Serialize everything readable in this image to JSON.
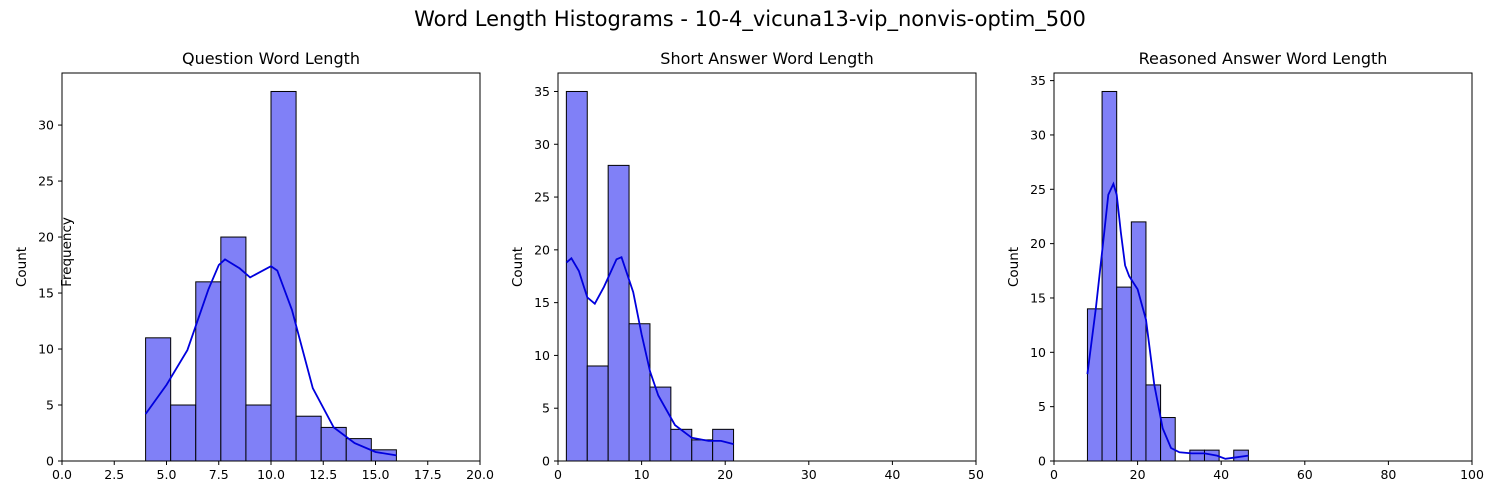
{
  "figure": {
    "title": "Word Length Histograms - 10-4_vicuna13-vip_nonvis-optim_500",
    "extra_label": "Frequency"
  },
  "colors": {
    "bar_fill": "#8080f7",
    "kde_line": "#0000dd",
    "edge": "#000000"
  },
  "chart_data": [
    {
      "type": "bar",
      "title": "Question Word Length",
      "xlabel": "",
      "ylabel": "Count",
      "xlim": [
        0,
        20
      ],
      "ylim": [
        0,
        34.65
      ],
      "xticks": [
        0,
        2.5,
        5,
        7.5,
        10,
        12.5,
        15,
        17.5,
        20
      ],
      "xtick_labels": [
        "0.0",
        "2.5",
        "5.0",
        "7.5",
        "10.0",
        "12.5",
        "15.0",
        "17.5",
        "20.0"
      ],
      "yticks": [
        0,
        5,
        10,
        15,
        20,
        25,
        30
      ],
      "bins": [
        {
          "x0": 4,
          "x1": 5.2,
          "count": 11
        },
        {
          "x0": 5.2,
          "x1": 6.4,
          "count": 5
        },
        {
          "x0": 6.4,
          "x1": 7.6,
          "count": 16
        },
        {
          "x0": 7.6,
          "x1": 8.8,
          "count": 20
        },
        {
          "x0": 8.8,
          "x1": 10,
          "count": 5
        },
        {
          "x0": 10,
          "x1": 11.2,
          "count": 33
        },
        {
          "x0": 11.2,
          "x1": 12.4,
          "count": 4
        },
        {
          "x0": 12.4,
          "x1": 13.6,
          "count": 3
        },
        {
          "x0": 13.6,
          "x1": 14.8,
          "count": 2
        },
        {
          "x0": 14.8,
          "x1": 16,
          "count": 1
        }
      ],
      "kde": [
        [
          4,
          4.2
        ],
        [
          5,
          6.8
        ],
        [
          6,
          9.9
        ],
        [
          7,
          15.3
        ],
        [
          7.5,
          17.5
        ],
        [
          7.8,
          18
        ],
        [
          8.5,
          17.2
        ],
        [
          9,
          16.4
        ],
        [
          9.5,
          16.9
        ],
        [
          10,
          17.4
        ],
        [
          10.3,
          17.0
        ],
        [
          11,
          13.5
        ],
        [
          12,
          6.5
        ],
        [
          13,
          3.0
        ],
        [
          14,
          1.6
        ],
        [
          15,
          0.8
        ],
        [
          16,
          0.5
        ]
      ]
    },
    {
      "type": "bar",
      "title": "Short Answer Word Length",
      "xlabel": "",
      "ylabel": "Count",
      "xlim": [
        0,
        50
      ],
      "ylim": [
        0,
        36.75
      ],
      "xticks": [
        0,
        10,
        20,
        30,
        40,
        50
      ],
      "xtick_labels": [
        "0",
        "10",
        "20",
        "30",
        "40",
        "50"
      ],
      "yticks": [
        0,
        5,
        10,
        15,
        20,
        25,
        30,
        35
      ],
      "bins": [
        {
          "x0": 1,
          "x1": 3.5,
          "count": 35
        },
        {
          "x0": 3.5,
          "x1": 6,
          "count": 9
        },
        {
          "x0": 6,
          "x1": 8.5,
          "count": 28
        },
        {
          "x0": 8.5,
          "x1": 11,
          "count": 13
        },
        {
          "x0": 11,
          "x1": 13.5,
          "count": 7
        },
        {
          "x0": 13.5,
          "x1": 16,
          "count": 3
        },
        {
          "x0": 16,
          "x1": 18.5,
          "count": 2
        },
        {
          "x0": 18.5,
          "x1": 21,
          "count": 3
        }
      ],
      "kde": [
        [
          1,
          18.8
        ],
        [
          1.6,
          19.2
        ],
        [
          2.5,
          18
        ],
        [
          3.5,
          15.5
        ],
        [
          4.4,
          14.9
        ],
        [
          5.5,
          16.5
        ],
        [
          7,
          19.1
        ],
        [
          7.6,
          19.3
        ],
        [
          9,
          16
        ],
        [
          10,
          12
        ],
        [
          11,
          8.5
        ],
        [
          12,
          6.2
        ],
        [
          14,
          3.4
        ],
        [
          16,
          2.2
        ],
        [
          18,
          1.9
        ],
        [
          19.5,
          1.9
        ],
        [
          21,
          1.6
        ]
      ]
    },
    {
      "type": "bar",
      "title": "Reasoned Answer Word Length",
      "xlabel": "",
      "ylabel": "Count",
      "xlim": [
        0,
        100
      ],
      "ylim": [
        0,
        35.7
      ],
      "xticks": [
        0,
        20,
        40,
        60,
        80,
        100
      ],
      "xtick_labels": [
        "0",
        "20",
        "40",
        "60",
        "80",
        "100"
      ],
      "yticks": [
        0,
        5,
        10,
        15,
        20,
        25,
        30,
        35
      ],
      "bins": [
        {
          "x0": 8,
          "x1": 11.5,
          "count": 14
        },
        {
          "x0": 11.5,
          "x1": 15,
          "count": 34
        },
        {
          "x0": 15,
          "x1": 18.5,
          "count": 16
        },
        {
          "x0": 18.5,
          "x1": 22,
          "count": 22
        },
        {
          "x0": 22,
          "x1": 25.5,
          "count": 7
        },
        {
          "x0": 25.5,
          "x1": 29,
          "count": 4
        },
        {
          "x0": 29,
          "x1": 32.5,
          "count": 0
        },
        {
          "x0": 32.5,
          "x1": 36,
          "count": 1
        },
        {
          "x0": 36,
          "x1": 39.5,
          "count": 1
        },
        {
          "x0": 39.5,
          "x1": 43,
          "count": 0
        },
        {
          "x0": 43,
          "x1": 46.5,
          "count": 1
        }
      ],
      "kde": [
        [
          8,
          8
        ],
        [
          10,
          14
        ],
        [
          12,
          21
        ],
        [
          13,
          24.5
        ],
        [
          14.2,
          25.5
        ],
        [
          15,
          24.5
        ],
        [
          16,
          21
        ],
        [
          17,
          18
        ],
        [
          18,
          17
        ],
        [
          20,
          15.8
        ],
        [
          22,
          13
        ],
        [
          24,
          7
        ],
        [
          26,
          3
        ],
        [
          28,
          1.2
        ],
        [
          30,
          0.8
        ],
        [
          33,
          0.7
        ],
        [
          36,
          0.7
        ],
        [
          39,
          0.5
        ],
        [
          41,
          0.2
        ],
        [
          43,
          0.3
        ],
        [
          46.5,
          0.5
        ]
      ]
    }
  ]
}
